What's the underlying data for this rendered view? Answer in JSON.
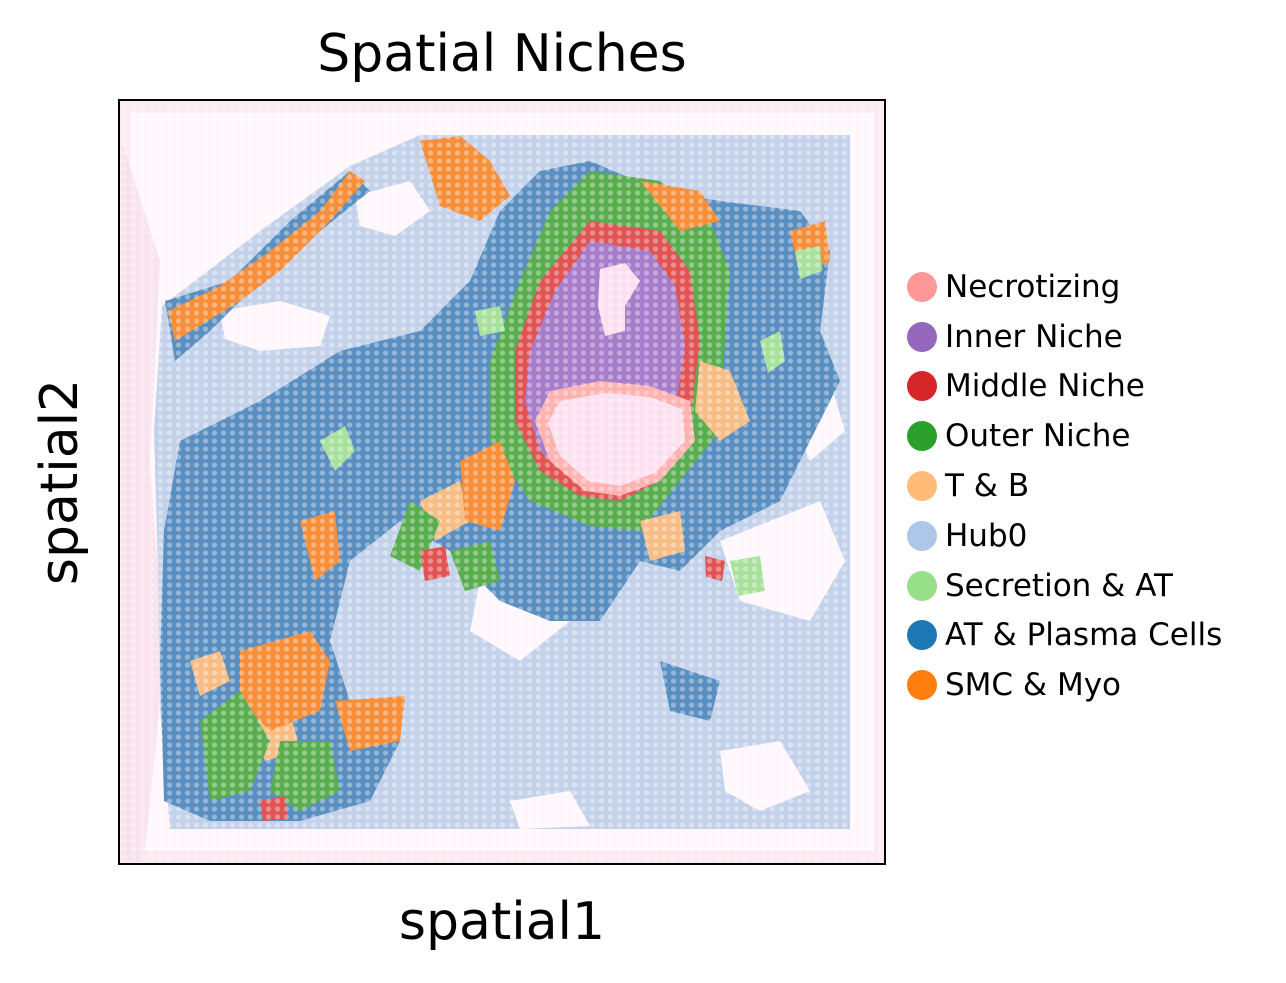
{
  "chart_data": {
    "type": "scatter",
    "subtype": "spatial spot map over tissue image",
    "title": "Spatial Niches",
    "xlabel": "spatial1",
    "ylabel": "spatial2",
    "ticks": "none",
    "grid": false,
    "legend_placement": "right",
    "series": [
      {
        "name": "Necrotizing",
        "color": "#ff9896"
      },
      {
        "name": "Inner Niche",
        "color": "#9467bd"
      },
      {
        "name": "Middle Niche",
        "color": "#d62728"
      },
      {
        "name": "Outer Niche",
        "color": "#2ca02c"
      },
      {
        "name": "T & B",
        "color": "#ffbb78"
      },
      {
        "name": "Hub0",
        "color": "#aec7e8"
      },
      {
        "name": "Secretion & AT",
        "color": "#98df8a"
      },
      {
        "name": "AT & Plasma Cells",
        "color": "#1f77b4"
      },
      {
        "name": "SMC & Myo",
        "color": "#ff7f0e"
      }
    ]
  }
}
